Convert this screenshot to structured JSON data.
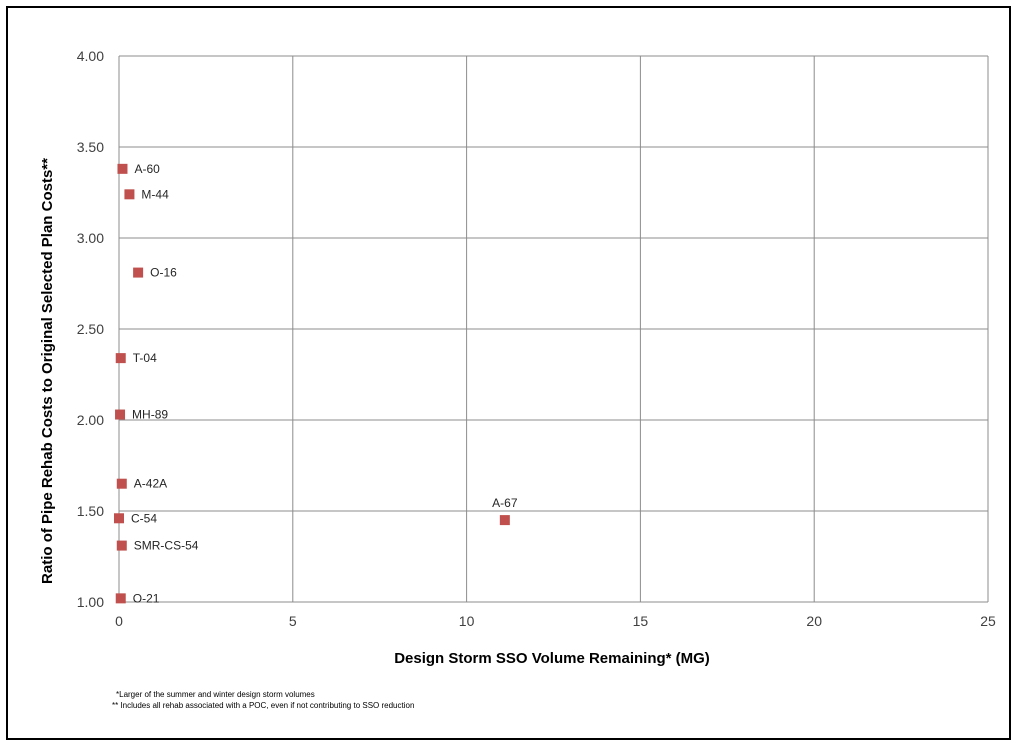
{
  "chart_data": {
    "type": "scatter",
    "xlabel": "Design Storm SSO Volume Remaining* (MG)",
    "ylabel": "Ratio of Pipe Rehab Costs to Original Selected Plan Costs**",
    "xlim": [
      0,
      25
    ],
    "ylim": [
      1.0,
      4.0
    ],
    "x_ticks": [
      "0",
      "5",
      "10",
      "15",
      "20",
      "25"
    ],
    "y_ticks": [
      "1.00",
      "1.50",
      "2.00",
      "2.50",
      "3.00",
      "3.50",
      "4.00"
    ],
    "grid": true,
    "marker_color": "#C0504D",
    "points": [
      {
        "label": "A-60",
        "x": 0.1,
        "y": 3.38
      },
      {
        "label": "M-44",
        "x": 0.3,
        "y": 3.24
      },
      {
        "label": "O-16",
        "x": 0.55,
        "y": 2.81
      },
      {
        "label": "T-04",
        "x": 0.05,
        "y": 2.34
      },
      {
        "label": "MH-89",
        "x": 0.03,
        "y": 2.03
      },
      {
        "label": "A-42A",
        "x": 0.08,
        "y": 1.65
      },
      {
        "label": "C-54",
        "x": 0.0,
        "y": 1.46
      },
      {
        "label": "SMR-CS-54",
        "x": 0.08,
        "y": 1.31
      },
      {
        "label": "O-21",
        "x": 0.05,
        "y": 1.02
      },
      {
        "label": "A-67",
        "x": 11.1,
        "y": 1.45
      }
    ]
  },
  "footnotes": {
    "note1": "*Larger of the summer and winter design storm volumes",
    "note2": "** Includes all rehab associated with a POC, even if not contributing to SSO reduction"
  }
}
